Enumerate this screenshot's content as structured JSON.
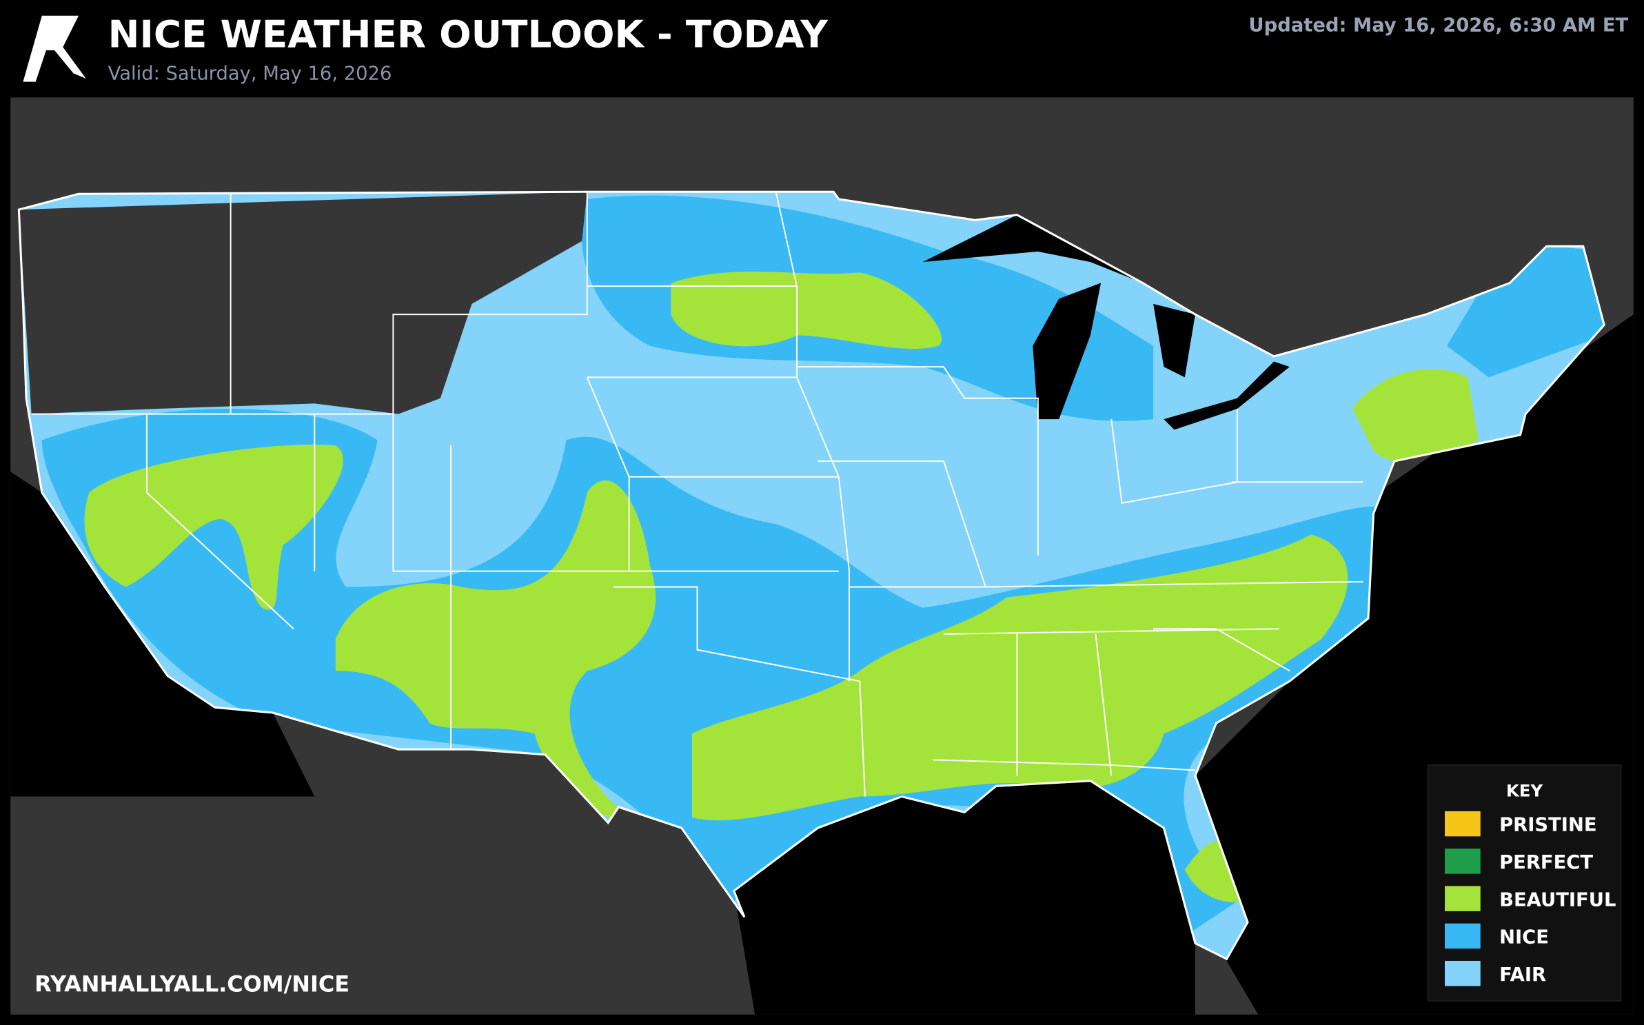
{
  "header": {
    "title": "NICE WEATHER OUTLOOK - TODAY",
    "subtitle": "Valid: Saturday, May 16, 2026",
    "updated": "Updated: May 16, 2026, 6:30 AM ET"
  },
  "footer": {
    "url": "RYANHALLYALL.COM/NICE"
  },
  "key": {
    "title": "KEY",
    "items": [
      {
        "label": "PRISTINE",
        "color": "#f5c518"
      },
      {
        "label": "PERFECT",
        "color": "#1e9e4a"
      },
      {
        "label": "BEAUTIFUL",
        "color": "#a4e43a"
      },
      {
        "label": "NICE",
        "color": "#38b9f4"
      },
      {
        "label": "FAIR",
        "color": "#84d3fa"
      }
    ]
  }
}
